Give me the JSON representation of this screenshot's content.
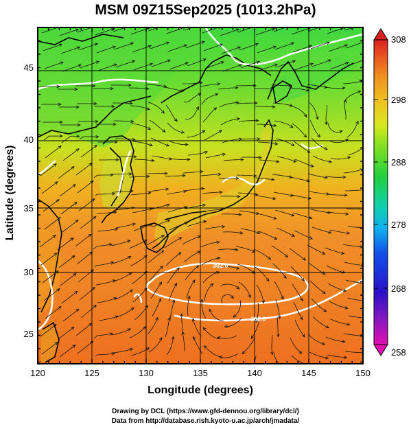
{
  "title": "MSM 09Z15Sep2025 (1013.2hPa)",
  "xlabel": "Longitude (degrees)",
  "ylabel": "Latitude  (degrees)",
  "lon_ticks": [
    "120",
    "125",
    "130",
    "135",
    "140",
    "145",
    "150"
  ],
  "lat_ticks": [
    "25",
    "30",
    "35",
    "40",
    "45"
  ],
  "colorbar": {
    "ticks": [
      "308",
      "298",
      "288",
      "278",
      "268",
      "258"
    ],
    "min": 258,
    "max": 308,
    "colors": [
      "#e010b0",
      "#8a18c0",
      "#2a10c8",
      "#1050e8",
      "#10b0f0",
      "#10d0b0",
      "#20d040",
      "#80e020",
      "#d8e820",
      "#f0c020",
      "#f09020",
      "#e85020",
      "#d82020"
    ]
  },
  "contour_labels": [
    "302.0",
    "302.0"
  ],
  "credits": {
    "line1": "Drawing by DCL (https://www.gfd-dennou.org/library/dcl/)",
    "line2": "Data from http://database.rish.kyoto-u.ac.jp/arch/jmadata/"
  }
}
